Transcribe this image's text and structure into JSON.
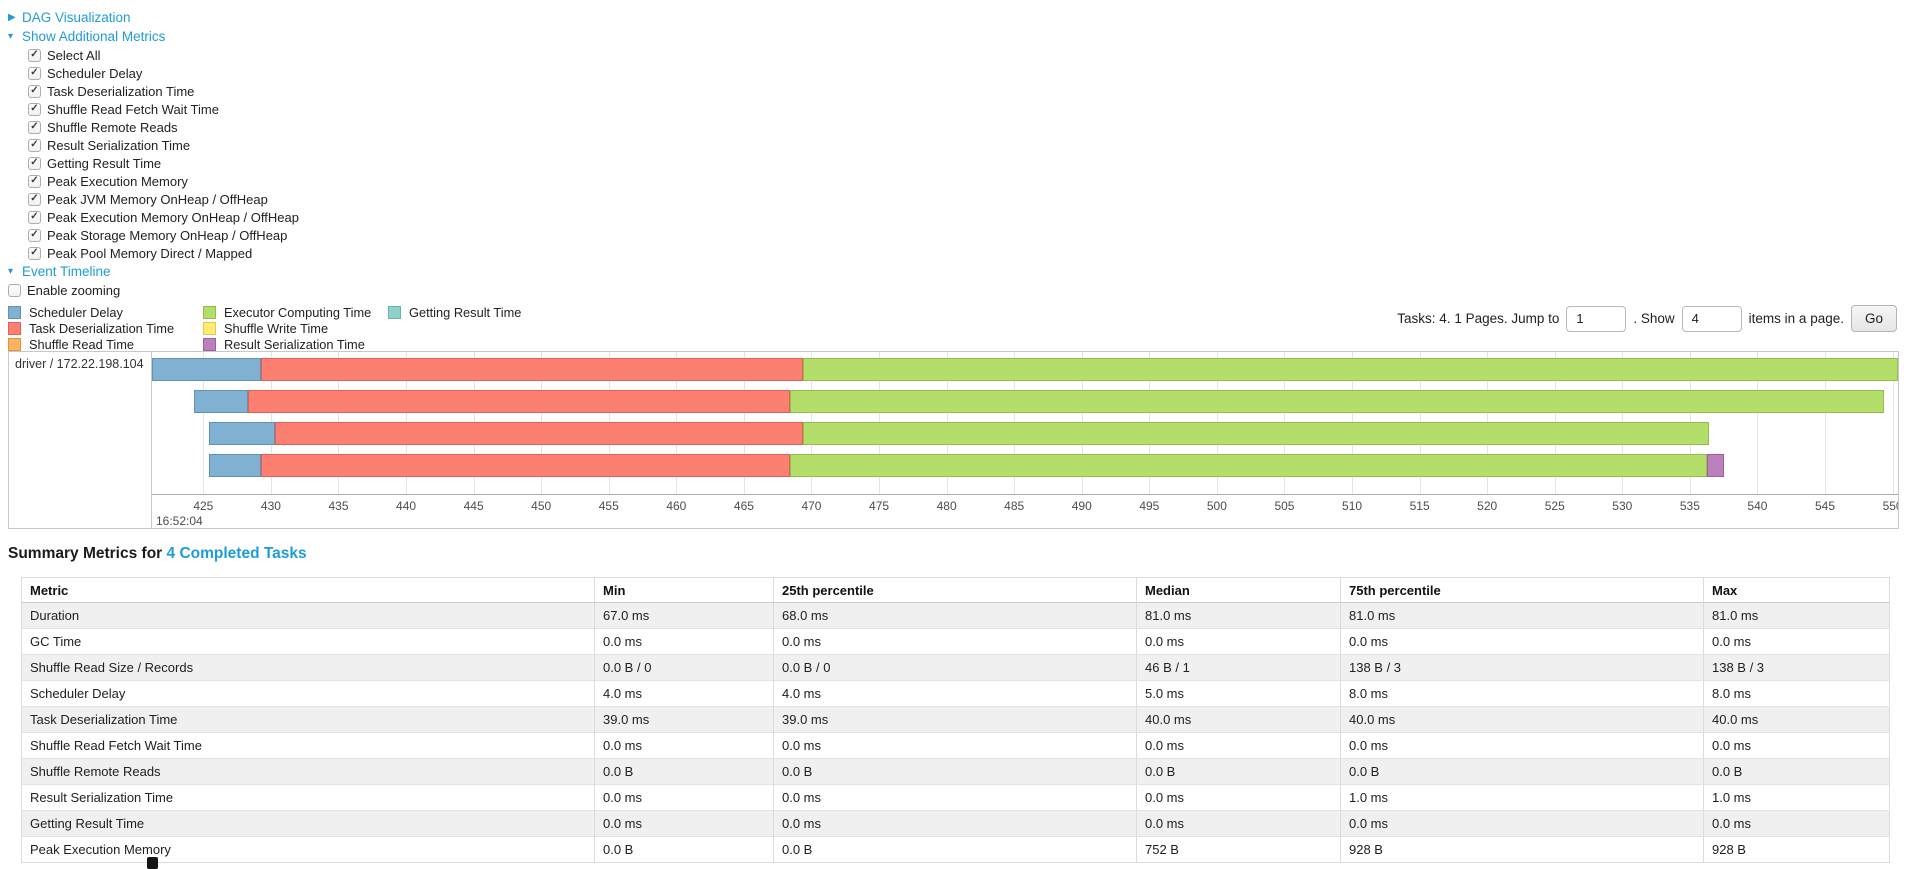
{
  "links": {
    "dag": "DAG Visualization",
    "metrics": "Show Additional Metrics",
    "timeline": "Event Timeline"
  },
  "metrics_panel": {
    "items": [
      "Select All",
      "Scheduler Delay",
      "Task Deserialization Time",
      "Shuffle Read Fetch Wait Time",
      "Shuffle Remote Reads",
      "Result Serialization Time",
      "Getting Result Time",
      "Peak Execution Memory",
      "Peak JVM Memory OnHeap / OffHeap",
      "Peak Execution Memory OnHeap / OffHeap",
      "Peak Storage Memory OnHeap / OffHeap",
      "Peak Pool Memory Direct / Mapped"
    ],
    "checked": true
  },
  "zoom_checkbox": {
    "label": "Enable zooming",
    "checked": false
  },
  "palette": {
    "scheduler_delay": {
      "fill": "#80B1D3",
      "border": "#6191B3"
    },
    "task_deserialization": {
      "fill": "#FB8072",
      "border": "#DC6156"
    },
    "shuffle_read": {
      "fill": "#FDB462",
      "border": "#DD9445"
    },
    "executor_computing": {
      "fill": "#B3DE69",
      "border": "#93BE4B"
    },
    "shuffle_write": {
      "fill": "#FFED6F",
      "border": "#DECC51"
    },
    "result_serialization": {
      "fill": "#BC80BD",
      "border": "#9C609D"
    },
    "getting_result": {
      "fill": "#8DD3C7",
      "border": "#6DB3A7"
    }
  },
  "legend": {
    "columns": [
      [
        {
          "key": "scheduler_delay",
          "label": "Scheduler Delay"
        },
        {
          "key": "task_deserialization",
          "label": "Task Deserialization Time"
        },
        {
          "key": "shuffle_read",
          "label": "Shuffle Read Time"
        }
      ],
      [
        {
          "key": "executor_computing",
          "label": "Executor Computing Time"
        },
        {
          "key": "shuffle_write",
          "label": "Shuffle Write Time"
        },
        {
          "key": "result_serialization",
          "label": "Result Serialization Time"
        }
      ],
      [
        {
          "key": "getting_result",
          "label": "Getting Result Time"
        }
      ]
    ]
  },
  "pagination": {
    "tasks_text": "Tasks: 4. 1 Pages. Jump to",
    "jump_value": "1",
    "show_text": ". Show",
    "show_value": "4",
    "items_text": "items in a page.",
    "go_label": "Go"
  },
  "chart_data": {
    "type": "timeline",
    "group_label": "driver / 172.22.198.104",
    "x_domain": [
      421.2,
      550.4
    ],
    "tick_start": 425,
    "tick_end": 550,
    "tick_step": 5,
    "major_label": "16:52:04",
    "x_unit": "ms (seconds within 16:52:04)",
    "rows": [
      {
        "segments": [
          [
            "scheduler_delay",
            421.2,
            429.3
          ],
          [
            "task_deserialization",
            429.3,
            469.4
          ],
          [
            "executor_computing",
            469.4,
            550.4
          ]
        ]
      },
      {
        "segments": [
          [
            "scheduler_delay",
            424.3,
            428.3
          ],
          [
            "task_deserialization",
            428.3,
            468.4
          ],
          [
            "executor_computing",
            468.4,
            549.4
          ]
        ]
      },
      {
        "segments": [
          [
            "scheduler_delay",
            425.4,
            430.3
          ],
          [
            "task_deserialization",
            430.3,
            469.4
          ],
          [
            "executor_computing",
            469.4,
            536.4
          ]
        ]
      },
      {
        "segments": [
          [
            "scheduler_delay",
            425.4,
            429.3
          ],
          [
            "task_deserialization",
            429.3,
            468.4
          ],
          [
            "executor_computing",
            468.4,
            536.3
          ],
          [
            "result_serialization",
            536.3,
            537.5
          ]
        ]
      }
    ]
  },
  "summary": {
    "heading_prefix": "Summary Metrics for",
    "heading_link": "4 Completed Tasks",
    "columns": [
      "Metric",
      "Min",
      "25th percentile",
      "Median",
      "75th percentile",
      "Max"
    ],
    "rows": [
      {
        "metric": "Duration",
        "values": [
          "67.0 ms",
          "68.0 ms",
          "81.0 ms",
          "81.0 ms",
          "81.0 ms"
        ]
      },
      {
        "metric": "GC Time",
        "values": [
          "0.0 ms",
          "0.0 ms",
          "0.0 ms",
          "0.0 ms",
          "0.0 ms"
        ]
      },
      {
        "metric": "Shuffle Read Size / Records",
        "values": [
          "0.0 B / 0",
          "0.0 B / 0",
          "46 B / 1",
          "138 B / 3",
          "138 B / 3"
        ]
      },
      {
        "metric": "Scheduler Delay",
        "values": [
          "4.0 ms",
          "4.0 ms",
          "5.0 ms",
          "8.0 ms",
          "8.0 ms"
        ]
      },
      {
        "metric": "Task Deserialization Time",
        "values": [
          "39.0 ms",
          "39.0 ms",
          "40.0 ms",
          "40.0 ms",
          "40.0 ms"
        ]
      },
      {
        "metric": "Shuffle Read Fetch Wait Time",
        "values": [
          "0.0 ms",
          "0.0 ms",
          "0.0 ms",
          "0.0 ms",
          "0.0 ms"
        ]
      },
      {
        "metric": "Shuffle Remote Reads",
        "values": [
          "0.0 B",
          "0.0 B",
          "0.0 B",
          "0.0 B",
          "0.0 B"
        ]
      },
      {
        "metric": "Result Serialization Time",
        "values": [
          "0.0 ms",
          "0.0 ms",
          "0.0 ms",
          "1.0 ms",
          "1.0 ms"
        ]
      },
      {
        "metric": "Getting Result Time",
        "values": [
          "0.0 ms",
          "0.0 ms",
          "0.0 ms",
          "0.0 ms",
          "0.0 ms"
        ]
      },
      {
        "metric": "Peak Execution Memory",
        "values": [
          "0.0 B",
          "0.0 B",
          "752 B",
          "928 B",
          "928 B"
        ]
      }
    ]
  }
}
